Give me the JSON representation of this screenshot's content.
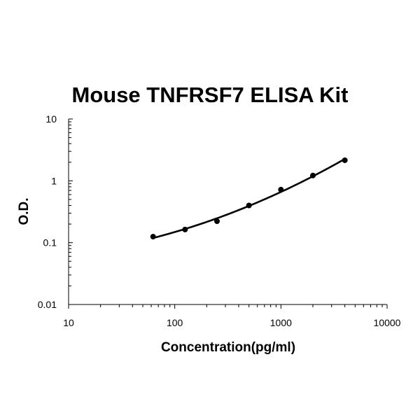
{
  "chart_data": {
    "type": "line",
    "title": "Mouse TNFRSF7 ELISA Kit",
    "xlabel": "Concentration(pg/ml)",
    "ylabel": "O.D.",
    "xscale": "log",
    "yscale": "log",
    "xlim": [
      10,
      10000
    ],
    "ylim": [
      0.01,
      10
    ],
    "x_ticks": [
      "10",
      "100",
      "1000",
      "10000"
    ],
    "y_ticks": [
      "0.01",
      "0.1",
      "1",
      "10"
    ],
    "grid": false,
    "legend": "none",
    "series": [
      {
        "x": [
          62.5,
          125,
          250,
          500,
          1000,
          2000,
          4000
        ],
        "y": [
          0.125,
          0.163,
          0.222,
          0.4,
          0.72,
          1.22,
          2.15
        ]
      }
    ],
    "colors": {
      "line": "#000000",
      "markers": "#000000",
      "axes": "#000000"
    }
  }
}
